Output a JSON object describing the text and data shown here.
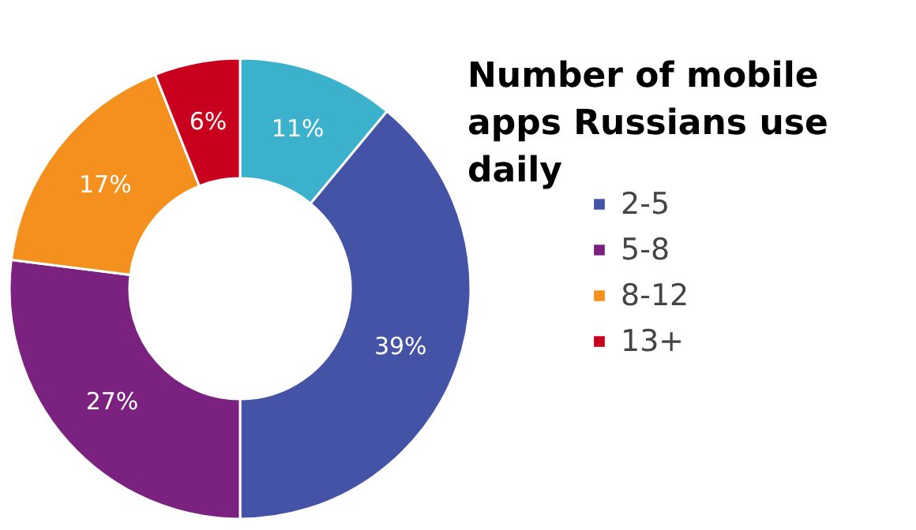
{
  "chart_data": {
    "type": "donut",
    "title": "Number of mobile apps Russians use daily",
    "categories": [
      null,
      "2-5",
      "5-8",
      "8-12",
      "13+"
    ],
    "values": [
      11,
      39,
      27,
      17,
      6
    ],
    "value_labels": [
      "11%",
      "39%",
      "27%",
      "17%",
      "6%"
    ],
    "colors": [
      "#3bb1cc",
      "#4453a5",
      "#7b2180",
      "#f4911e",
      "#c8001e"
    ],
    "legend": "right"
  }
}
